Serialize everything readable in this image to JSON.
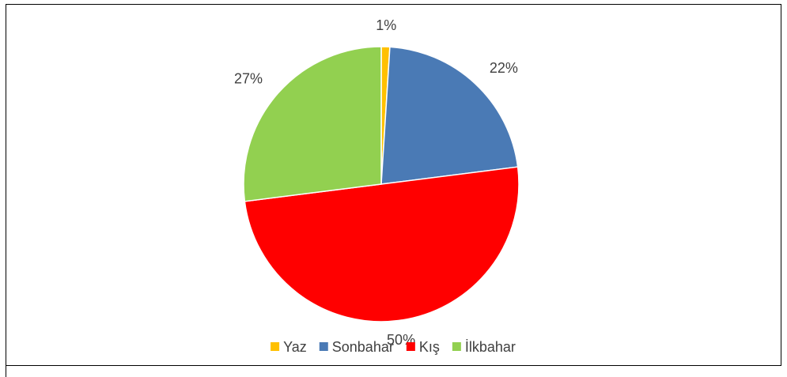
{
  "chart_data": {
    "type": "pie",
    "categories": [
      "Yaz",
      "Sonbahar",
      "Kış",
      "İlkbahar"
    ],
    "values": [
      1,
      22,
      50,
      27
    ],
    "value_labels": [
      "1%",
      "22%",
      "50%",
      "27%"
    ],
    "colors": [
      "#ffc000",
      "#4a7ab5",
      "#ff0000",
      "#92d050"
    ],
    "legend": "bottom"
  }
}
